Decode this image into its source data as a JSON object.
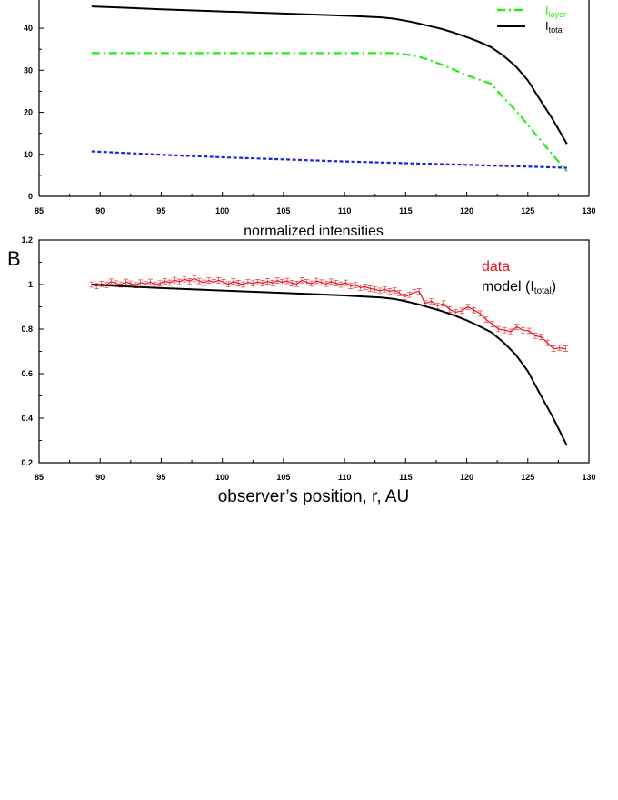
{
  "chart_data": [
    {
      "type": "line",
      "panel_label": "",
      "title": "",
      "xlabel": "normalized intensities",
      "ylabel": "",
      "xlim": [
        85,
        130
      ],
      "ylim": [
        0,
        45
      ],
      "xticks": [
        85,
        90,
        95,
        100,
        105,
        110,
        115,
        120,
        125,
        130
      ],
      "yticks": [
        0,
        10,
        20,
        30,
        40
      ],
      "grid": false,
      "legend_position": "top-right",
      "series": [
        {
          "name": "I_layer",
          "legend_main": "I",
          "legend_sub": "layer",
          "color": "#22ee11",
          "style": "dashdot",
          "x": [
            89.3,
            92,
            95,
            100,
            105,
            110,
            113,
            114,
            115,
            116,
            117,
            118,
            119,
            120,
            121,
            122,
            123,
            124,
            125,
            126,
            127,
            128.2
          ],
          "y": [
            34.1,
            34.1,
            34.1,
            34.1,
            34.1,
            34.1,
            34.1,
            34.1,
            33.8,
            33.3,
            32.4,
            31.3,
            30.1,
            28.8,
            27.8,
            26.8,
            23.5,
            20.5,
            17.0,
            13.5,
            10.0,
            6.0
          ]
        },
        {
          "name": "I_total",
          "legend_main": "I",
          "legend_sub": "total",
          "color": "#000000",
          "style": "solid",
          "x": [
            89.3,
            92,
            95,
            100,
            105,
            110,
            113,
            114,
            115,
            116,
            117,
            118,
            119,
            120,
            121,
            122,
            123,
            124,
            125,
            126,
            127,
            128.2
          ],
          "y": [
            45.2,
            44.9,
            44.5,
            44.0,
            43.5,
            43.0,
            42.6,
            42.3,
            41.8,
            41.2,
            40.5,
            39.8,
            38.9,
            37.9,
            36.8,
            35.5,
            33.5,
            31.0,
            27.6,
            23.0,
            18.5,
            12.5
          ]
        },
        {
          "name": "I_background",
          "legend_main": "",
          "legend_sub": "",
          "color": "#1a22dd",
          "style": "dotted",
          "x": [
            89.3,
            95,
            100,
            105,
            110,
            115,
            120,
            125,
            128.2
          ],
          "y": [
            10.7,
            9.9,
            9.3,
            8.8,
            8.3,
            7.9,
            7.5,
            7.1,
            6.8
          ]
        }
      ]
    },
    {
      "type": "line",
      "panel_label": "B",
      "title": "",
      "xlabel": "observer’s position, r, AU",
      "ylabel": "",
      "xlim": [
        85,
        130
      ],
      "ylim": [
        0.2,
        1.2
      ],
      "xticks": [
        85,
        90,
        95,
        100,
        105,
        110,
        115,
        120,
        125,
        130
      ],
      "yticks": [
        0.2,
        0.4,
        0.6,
        0.8,
        1,
        1.2
      ],
      "grid": false,
      "legend_position": "top-right",
      "series": [
        {
          "name": "data",
          "legend_main": "data",
          "legend_sub": "",
          "legend_suffix": "",
          "color": "#e8141c",
          "style": "solid",
          "error_bars": true,
          "error": 0.012,
          "x": [
            89.3,
            89.7,
            90.1,
            90.5,
            90.9,
            91.3,
            91.7,
            92.1,
            92.5,
            92.9,
            93.3,
            93.7,
            94.1,
            94.5,
            94.9,
            95.3,
            95.7,
            96.1,
            96.5,
            96.9,
            97.3,
            97.7,
            98.1,
            98.5,
            98.9,
            99.3,
            99.7,
            100.1,
            100.5,
            100.9,
            101.3,
            101.7,
            102.1,
            102.5,
            102.9,
            103.3,
            103.7,
            104.1,
            104.5,
            104.9,
            105.3,
            105.7,
            106.1,
            106.5,
            106.9,
            107.3,
            107.7,
            108.1,
            108.5,
            108.9,
            109.3,
            109.7,
            110.1,
            110.5,
            110.9,
            111.3,
            111.7,
            112.1,
            112.5,
            112.9,
            113.3,
            113.7,
            114.1,
            114.5,
            114.9,
            115.3,
            115.7,
            116.1,
            116.6,
            117.1,
            117.6,
            118.1,
            118.6,
            119.1,
            119.6,
            120.1,
            120.6,
            121.1,
            121.6,
            122.1,
            122.6,
            123.1,
            123.6,
            124.1,
            124.6,
            125.1,
            125.6,
            126.1,
            126.6,
            127.1,
            127.6,
            128.1
          ],
          "y": [
            1.0,
            0.993,
            1.003,
            0.998,
            1.013,
            1.005,
            1.0,
            1.012,
            1.004,
            0.997,
            1.009,
            1.002,
            1.012,
            0.999,
            1.005,
            1.015,
            1.008,
            1.02,
            1.012,
            1.024,
            1.015,
            1.027,
            1.016,
            1.008,
            1.018,
            1.01,
            1.019,
            1.011,
            1.001,
            1.014,
            1.006,
            1.0,
            1.01,
            1.005,
            1.011,
            1.006,
            1.014,
            1.007,
            1.018,
            1.01,
            1.016,
            1.006,
            1.003,
            1.019,
            1.01,
            1.004,
            1.016,
            1.009,
            1.003,
            1.013,
            1.006,
            1.0,
            1.008,
            0.993,
            0.998,
            0.986,
            0.99,
            0.982,
            0.978,
            0.972,
            0.978,
            0.97,
            0.974,
            0.962,
            0.945,
            0.954,
            0.965,
            0.97,
            0.915,
            0.925,
            0.904,
            0.915,
            0.888,
            0.876,
            0.882,
            0.9,
            0.885,
            0.87,
            0.842,
            0.822,
            0.8,
            0.795,
            0.788,
            0.81,
            0.795,
            0.792,
            0.77,
            0.765,
            0.738,
            0.712,
            0.715,
            0.712
          ]
        },
        {
          "name": "model (I_total)",
          "legend_main": "model (I",
          "legend_sub": "total",
          "legend_suffix": ")",
          "color": "#000000",
          "style": "solid",
          "error_bars": false,
          "x": [
            89.3,
            92,
            95,
            100,
            105,
            110,
            113,
            114,
            115,
            116,
            117,
            118,
            119,
            120,
            121,
            122,
            123,
            124,
            125,
            126,
            127,
            128.2
          ],
          "y": [
            1.0,
            0.992,
            0.984,
            0.973,
            0.962,
            0.951,
            0.942,
            0.936,
            0.925,
            0.912,
            0.896,
            0.88,
            0.861,
            0.839,
            0.814,
            0.786,
            0.741,
            0.686,
            0.611,
            0.509,
            0.409,
            0.277
          ]
        }
      ]
    }
  ]
}
